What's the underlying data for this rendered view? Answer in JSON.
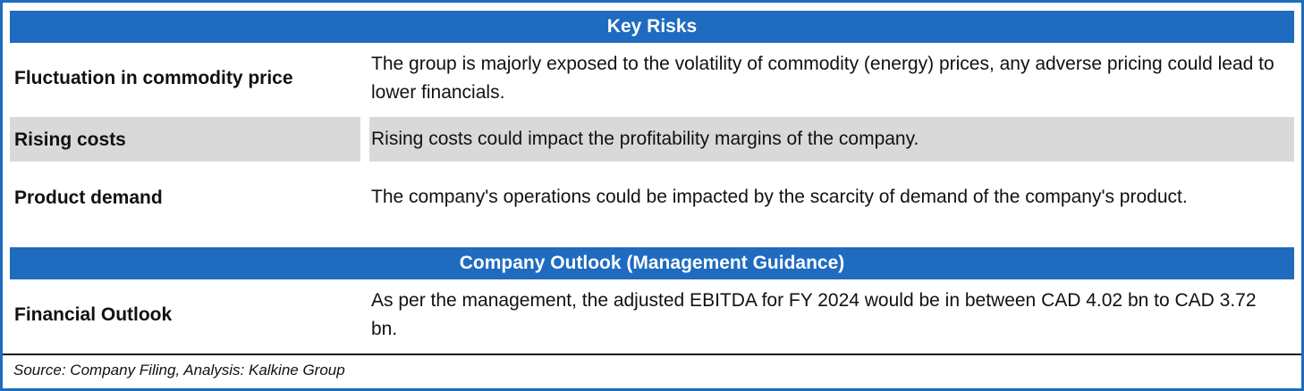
{
  "colors": {
    "accent": "#1E6BC0",
    "shaded": "#D9D9D9",
    "header-text": "#FFFFFF"
  },
  "sections": [
    {
      "title": "Key Risks",
      "rows": [
        {
          "label": "Fluctuation in commodity price",
          "text": "The group is majorly exposed to the volatility of commodity (energy) prices, any adverse pricing could lead to lower financials."
        },
        {
          "label": "Rising costs",
          "text": "Rising costs could impact the profitability margins of the company."
        },
        {
          "label": "Product demand",
          "text": "The company's operations could be impacted by the scarcity of demand of the company's product."
        }
      ]
    },
    {
      "title": "Company Outlook (Management Guidance)",
      "rows": [
        {
          "label": "Financial Outlook",
          "text": "As per the management, the adjusted EBITDA for FY 2024 would be in between CAD 4.02 bn to CAD 3.72 bn."
        }
      ]
    }
  ],
  "footer": {
    "source_note": "Source: Company Filing, Analysis: Kalkine Group"
  }
}
